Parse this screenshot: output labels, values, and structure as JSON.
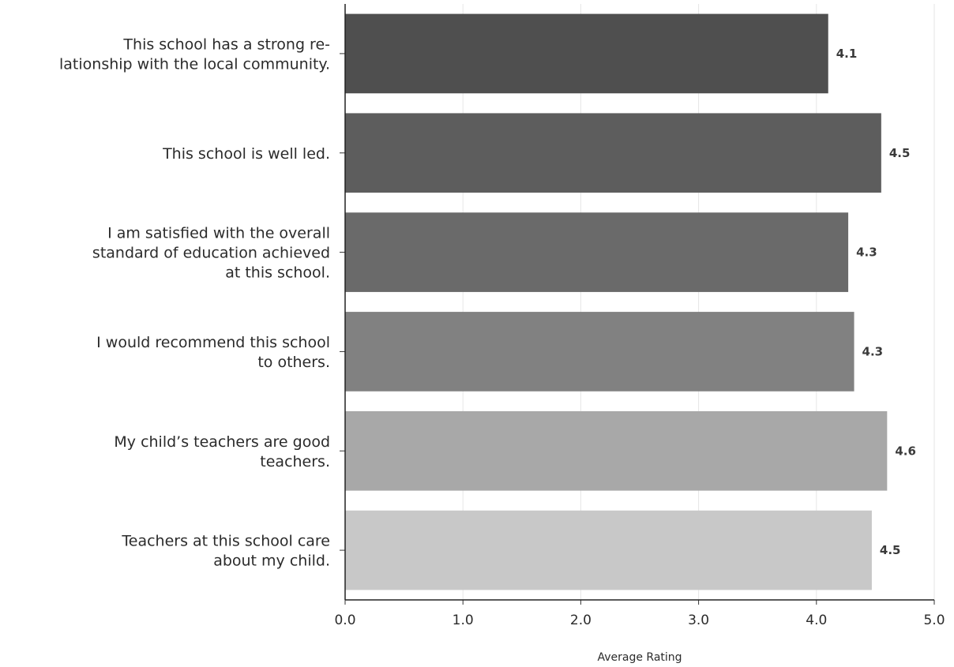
{
  "chart_data": {
    "type": "bar",
    "orientation": "horizontal",
    "title": "",
    "xlabel": "Average Rating",
    "ylabel": "",
    "xlim": [
      0,
      5
    ],
    "x_ticks": [
      "0.0",
      "1.0",
      "2.0",
      "3.0",
      "4.0",
      "5.0"
    ],
    "grid": "vertical",
    "legend": "none",
    "categories": [
      [
        "This school has a strong re-",
        "lationship with the local community."
      ],
      [
        "This school is well led."
      ],
      [
        "I am satisfied with the overall",
        "standard of education achieved",
        "at this school."
      ],
      [
        "I would recommend this school",
        "to others."
      ],
      [
        "My child’s teachers are good",
        "teachers."
      ],
      [
        "Teachers at this school care",
        "about my child."
      ]
    ],
    "values": [
      4.1,
      4.55,
      4.27,
      4.32,
      4.6,
      4.47
    ],
    "data_labels": [
      "4.1",
      "4.5",
      "4.3",
      "4.3",
      "4.6",
      "4.5"
    ],
    "colors": [
      "#4f4f4f",
      "#5d5d5d",
      "#6a6a6a",
      "#818181",
      "#a8a8a8",
      "#c8c8c8"
    ]
  }
}
